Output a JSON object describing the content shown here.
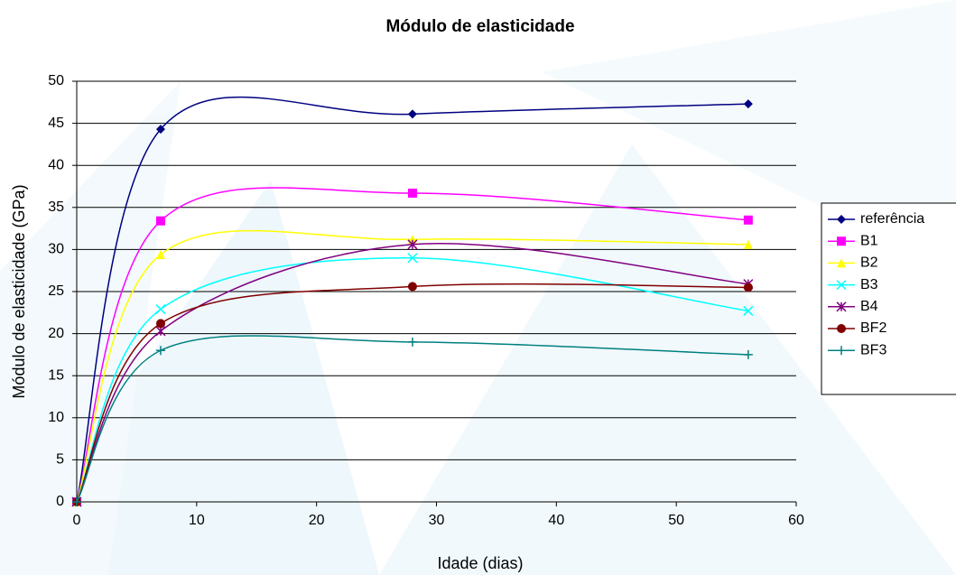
{
  "chart_data": {
    "type": "line",
    "title": "Módulo de elasticidade",
    "x_label": "Idade (dias)",
    "y_label": "Módulo de elasticidade (GPa)",
    "x": [
      0,
      7,
      28,
      56
    ],
    "xlim": [
      0,
      60
    ],
    "xticks": [
      0,
      10,
      20,
      30,
      40,
      50,
      60
    ],
    "ylim": [
      0,
      50
    ],
    "yticks": [
      0,
      5,
      10,
      15,
      20,
      25,
      30,
      35,
      40,
      45,
      50
    ],
    "grid": true,
    "smooth": true,
    "legend": "right",
    "series": [
      {
        "name": "referência",
        "color": "#000080",
        "marker": "diamond",
        "values": [
          0,
          44.3,
          46.1,
          47.3
        ]
      },
      {
        "name": "B1",
        "color": "#ff00ff",
        "marker": "square",
        "values": [
          0,
          33.4,
          36.7,
          33.5
        ]
      },
      {
        "name": "B2",
        "color": "#ffff00",
        "marker": "triangle",
        "values": [
          0,
          29.4,
          31.2,
          30.6
        ]
      },
      {
        "name": "B3",
        "color": "#00ffff",
        "marker": "x",
        "values": [
          0,
          22.9,
          29.0,
          22.7
        ]
      },
      {
        "name": "B4",
        "color": "#800080",
        "marker": "star",
        "values": [
          0,
          20.3,
          30.6,
          25.9
        ]
      },
      {
        "name": "BF2",
        "color": "#800000",
        "marker": "circle",
        "values": [
          0,
          21.2,
          25.6,
          25.5
        ]
      },
      {
        "name": "BF3",
        "color": "#008080",
        "marker": "plus",
        "values": [
          0,
          18.0,
          19.0,
          17.5
        ]
      }
    ]
  }
}
